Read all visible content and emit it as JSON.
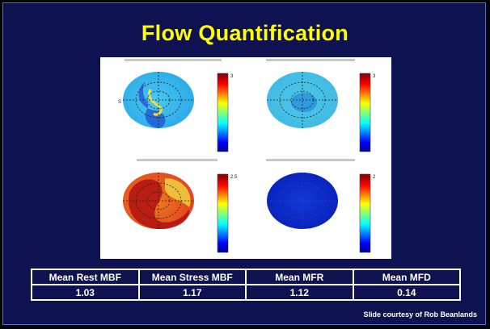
{
  "slide": {
    "title": "Flow Quantification",
    "credit": "Slide courtesy of Rob Beanlands"
  },
  "figure": {
    "panels": [
      {
        "position": "top-left",
        "colormap_max_label": "3",
        "map": "rest"
      },
      {
        "position": "top-right",
        "colormap_max_label": "3",
        "map": "stress"
      },
      {
        "position": "bottom-left",
        "colormap_max_label": "2.5",
        "map": "ratio"
      },
      {
        "position": "bottom-right",
        "colormap_max_label": "2",
        "map": "difference"
      }
    ],
    "colors": {
      "red": "#a00000",
      "yellow": "#ffff00",
      "cyan": "#00c8ff",
      "blue": "#0000a0"
    }
  },
  "table": {
    "headers": [
      "Mean Rest MBF",
      "Mean Stress MBF",
      "Mean MFR",
      "Mean MFD"
    ],
    "values": [
      "1.03",
      "1.17",
      "1.12",
      "0.14"
    ]
  }
}
